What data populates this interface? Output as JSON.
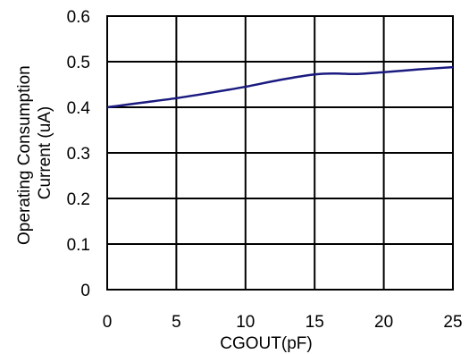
{
  "chart_data": {
    "type": "line",
    "xlabel": "CGOUT(pF)",
    "ylabel_lines": [
      "Operating Consumption",
      "Current (uA)"
    ],
    "xlim": [
      0,
      25
    ],
    "ylim": [
      0,
      0.6
    ],
    "x_ticks": [
      0,
      5,
      10,
      15,
      20,
      25
    ],
    "y_ticks": [
      0,
      0.1,
      0.2,
      0.3,
      0.4,
      0.5,
      0.6
    ],
    "x_tick_labels": [
      "0",
      "5",
      "10",
      "15",
      "20",
      "25"
    ],
    "y_tick_labels": [
      "0",
      "0.1",
      "0.2",
      "0.3",
      "0.4",
      "0.5",
      "0.6"
    ],
    "grid": true,
    "series": [
      {
        "color": "#1a1a80",
        "x": [
          0,
          2.5,
          5,
          7.5,
          10,
          12.5,
          15,
          16.5,
          18,
          20,
          22.5,
          25
        ],
        "y": [
          0.4,
          0.41,
          0.42,
          0.432,
          0.445,
          0.46,
          0.472,
          0.474,
          0.473,
          0.477,
          0.483,
          0.488
        ]
      }
    ]
  }
}
